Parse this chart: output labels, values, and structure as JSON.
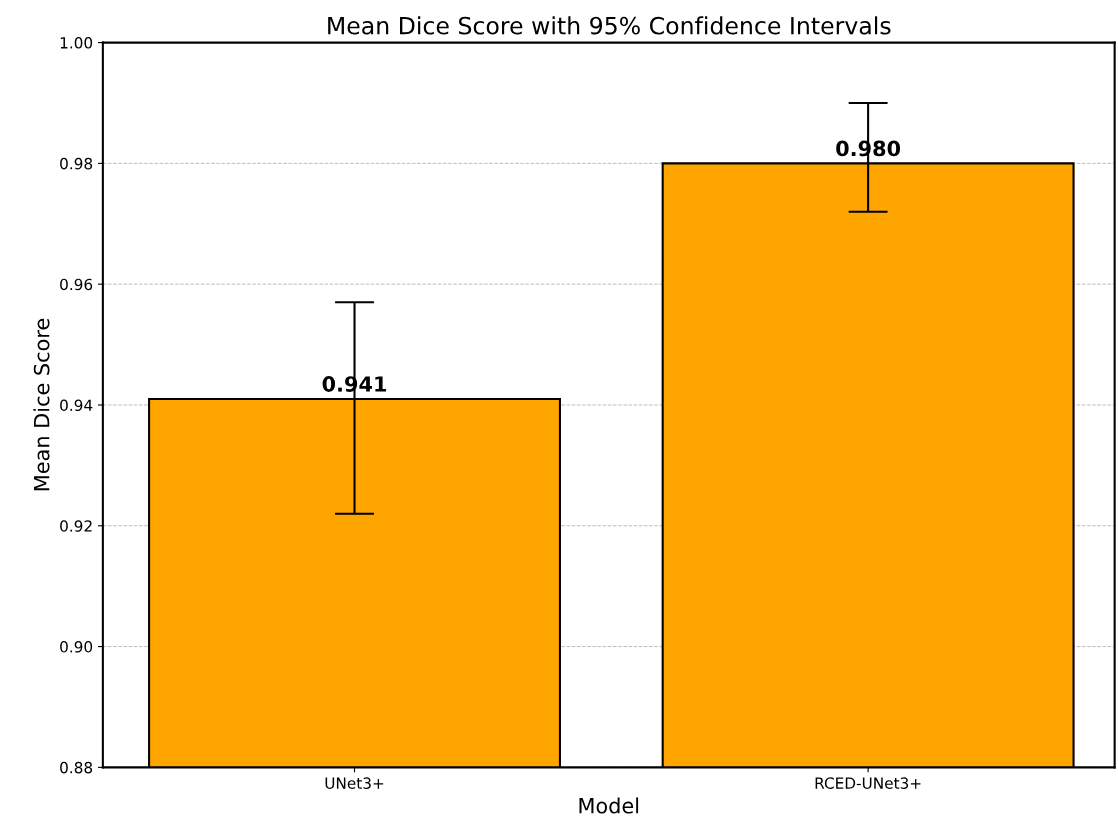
{
  "chart_data": {
    "type": "bar",
    "title": "Mean Dice Score with 95% Confidence Intervals",
    "xlabel": "Model",
    "ylabel": "Mean Dice Score",
    "categories": [
      "UNet3+",
      "RCED-UNet3+"
    ],
    "values": [
      0.941,
      0.98
    ],
    "errors": [
      [
        0.922,
        0.957
      ],
      [
        0.972,
        0.99
      ]
    ],
    "color": "#ffa500",
    "value_labels": [
      "0.941",
      "0.980"
    ],
    "ylim": [
      0.88,
      1.0
    ],
    "yticks": [
      0.88,
      {
        "value": 0.9,
        "label": "0.90"
      },
      0.92,
      0.94,
      0.96,
      0.98,
      {
        "value": 1.0,
        "label": "1.00"
      }
    ],
    "grid": "y"
  }
}
